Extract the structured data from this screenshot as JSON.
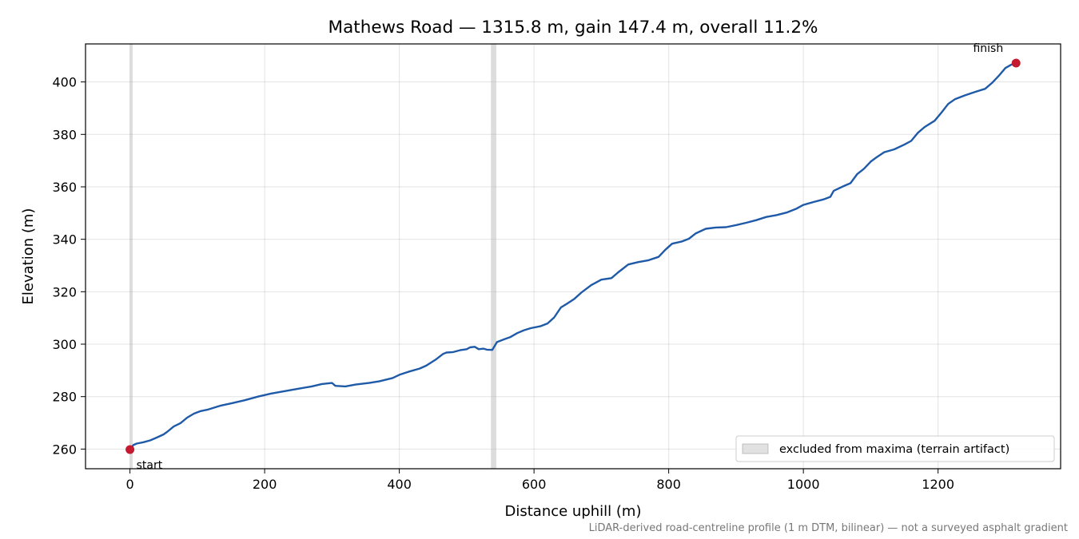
{
  "chart_data": {
    "type": "line",
    "title": "Mathews Road — 1315.8 m, gain 147.4 m, overall 11.2%",
    "xlabel": "Distance uphill (m)",
    "ylabel": "Elevation (m)",
    "xlim": [
      -66,
      1382
    ],
    "ylim": [
      252.5,
      414.5
    ],
    "xticks": [
      0,
      200,
      400,
      600,
      800,
      1000,
      1200
    ],
    "yticks": [
      260,
      280,
      300,
      320,
      340,
      360,
      380,
      400
    ],
    "grid": true,
    "series": [
      {
        "color": "#1f5aa8",
        "points": [
          [
            0,
            259.8
          ],
          [
            5,
            261.5
          ],
          [
            10,
            262.1
          ],
          [
            20,
            262.6
          ],
          [
            30,
            263.3
          ],
          [
            40,
            264.4
          ],
          [
            50,
            265.6
          ],
          [
            55,
            266.5
          ],
          [
            65,
            268.6
          ],
          [
            75,
            269.9
          ],
          [
            85,
            272.0
          ],
          [
            95,
            273.5
          ],
          [
            105,
            274.5
          ],
          [
            115,
            275.0
          ],
          [
            125,
            275.8
          ],
          [
            135,
            276.6
          ],
          [
            150,
            277.4
          ],
          [
            170,
            278.6
          ],
          [
            190,
            280.0
          ],
          [
            210,
            281.2
          ],
          [
            230,
            282.1
          ],
          [
            250,
            283.0
          ],
          [
            270,
            283.9
          ],
          [
            285,
            284.8
          ],
          [
            300,
            285.2
          ],
          [
            305,
            284.1
          ],
          [
            320,
            283.9
          ],
          [
            335,
            284.6
          ],
          [
            355,
            285.2
          ],
          [
            370,
            285.8
          ],
          [
            390,
            287.1
          ],
          [
            400,
            288.3
          ],
          [
            415,
            289.6
          ],
          [
            430,
            290.7
          ],
          [
            440,
            291.8
          ],
          [
            455,
            294.3
          ],
          [
            465,
            296.3
          ],
          [
            470,
            296.8
          ],
          [
            480,
            297.0
          ],
          [
            490,
            297.7
          ],
          [
            500,
            298.1
          ],
          [
            505,
            298.8
          ],
          [
            512,
            299.0
          ],
          [
            518,
            298.1
          ],
          [
            525,
            298.3
          ],
          [
            530,
            297.9
          ],
          [
            538,
            297.8
          ],
          [
            545,
            300.8
          ],
          [
            555,
            301.8
          ],
          [
            565,
            302.7
          ],
          [
            575,
            304.2
          ],
          [
            585,
            305.3
          ],
          [
            595,
            306.1
          ],
          [
            610,
            306.9
          ],
          [
            620,
            307.9
          ],
          [
            630,
            310.2
          ],
          [
            640,
            314.0
          ],
          [
            650,
            315.6
          ],
          [
            660,
            317.3
          ],
          [
            670,
            319.6
          ],
          [
            685,
            322.5
          ],
          [
            700,
            324.6
          ],
          [
            715,
            325.2
          ],
          [
            725,
            327.4
          ],
          [
            740,
            330.4
          ],
          [
            755,
            331.3
          ],
          [
            770,
            332.0
          ],
          [
            785,
            333.3
          ],
          [
            795,
            336.0
          ],
          [
            805,
            338.3
          ],
          [
            820,
            339.2
          ],
          [
            830,
            340.2
          ],
          [
            840,
            342.2
          ],
          [
            855,
            344.0
          ],
          [
            870,
            344.5
          ],
          [
            885,
            344.6
          ],
          [
            900,
            345.4
          ],
          [
            915,
            346.3
          ],
          [
            930,
            347.3
          ],
          [
            945,
            348.5
          ],
          [
            960,
            349.2
          ],
          [
            975,
            350.2
          ],
          [
            990,
            351.7
          ],
          [
            1000,
            353.1
          ],
          [
            1015,
            354.2
          ],
          [
            1030,
            355.2
          ],
          [
            1040,
            356.2
          ],
          [
            1045,
            358.5
          ],
          [
            1060,
            360.3
          ],
          [
            1070,
            361.4
          ],
          [
            1080,
            364.9
          ],
          [
            1090,
            366.9
          ],
          [
            1100,
            369.6
          ],
          [
            1110,
            371.5
          ],
          [
            1120,
            373.2
          ],
          [
            1135,
            374.3
          ],
          [
            1150,
            376.1
          ],
          [
            1160,
            377.5
          ],
          [
            1170,
            380.6
          ],
          [
            1180,
            382.8
          ],
          [
            1195,
            385.2
          ],
          [
            1205,
            388.3
          ],
          [
            1215,
            391.6
          ],
          [
            1225,
            393.4
          ],
          [
            1240,
            394.9
          ],
          [
            1255,
            396.2
          ],
          [
            1270,
            397.4
          ],
          [
            1280,
            399.6
          ],
          [
            1290,
            402.3
          ],
          [
            1300,
            405.3
          ],
          [
            1308,
            406.5
          ],
          [
            1315.8,
            407.2
          ]
        ]
      }
    ],
    "markers": [
      {
        "label": "start",
        "x": 0,
        "y": 259.8,
        "color": "#c4192e"
      },
      {
        "label": "finish",
        "x": 1315.8,
        "y": 407.2,
        "color": "#c4192e"
      }
    ],
    "excluded_bands": [
      [
        0,
        4
      ],
      [
        536,
        544
      ]
    ],
    "legend": {
      "label": "excluded from maxima (terrain artifact)",
      "placement": "lower-right"
    },
    "footnote": "LiDAR-derived road-centreline profile (1 m DTM, bilinear) — not a surveyed asphalt gradient"
  }
}
